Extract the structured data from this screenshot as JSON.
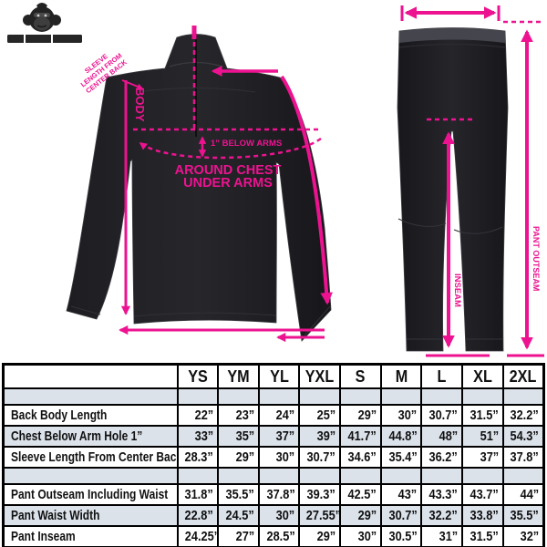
{
  "accent_color": "#ED1390",
  "garment_color": "#1d1d21",
  "stripe_color": "#dbe2ea",
  "logo": {
    "icon": "gorilla-mascot-icon"
  },
  "jacket_diagram": {
    "body_label": "BODY",
    "below_arms_label": "1” BELOW ARMS",
    "around_chest_line1": "AROUND CHEST",
    "around_chest_line2": "UNDER ARMS",
    "sleeve_label_line1": "SLEEVE",
    "sleeve_label_line2": "LENGTH FROM",
    "sleeve_label_line3": "CENTER BACK"
  },
  "pants_diagram": {
    "outseam_label": "PANT OUTSEAM",
    "inseam_label": "INSEAM"
  },
  "size_table": {
    "columns": [
      "YS",
      "YM",
      "YL",
      "YXL",
      "S",
      "M",
      "L",
      "XL",
      "2XL"
    ],
    "rows": [
      {
        "label": "Back Body Length",
        "values": [
          "22”",
          "23”",
          "24”",
          "25”",
          "29”",
          "30”",
          "30.7”",
          "31.5”",
          "32.2”"
        ]
      },
      {
        "label": "Chest Below Arm Hole 1”",
        "values": [
          "33”",
          "35”",
          "37”",
          "39”",
          "41.7”",
          "44.8”",
          "48”",
          "51”",
          "54.3”"
        ]
      },
      {
        "label": "Sleeve Length From Center Back",
        "values": [
          "28.3”",
          "29”",
          "30”",
          "30.7”",
          "34.6”",
          "35.4”",
          "36.2”",
          "37”",
          "37.8”"
        ]
      },
      {
        "label": "Pant Outseam Including Waist",
        "values": [
          "31.8”",
          "35.5”",
          "37.8”",
          "39.3”",
          "42.5”",
          "43”",
          "43.3”",
          "43.7”",
          "44”"
        ]
      },
      {
        "label": "Pant Waist Width",
        "values": [
          "22.8”",
          "24.5”",
          "30”",
          "27.55”",
          "29”",
          "30.7”",
          "32.2”",
          "33.8”",
          "35.5”"
        ]
      },
      {
        "label": "Pant Inseam",
        "values": [
          "24.25”",
          "27”",
          "28.5”",
          "29”",
          "30”",
          "30.5”",
          "31”",
          "31.5”",
          "32”"
        ]
      }
    ],
    "row_groups": [
      [
        0,
        1,
        2
      ],
      [
        3,
        4,
        5
      ]
    ]
  }
}
